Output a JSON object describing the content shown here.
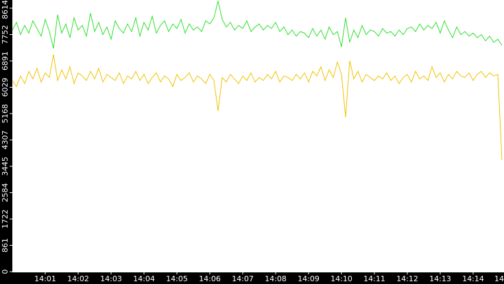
{
  "chart_data": {
    "type": "line",
    "x": [
      840,
      840.125,
      840.25,
      840.375,
      840.5,
      840.625,
      840.75,
      840.875,
      841,
      841.125,
      841.25,
      841.375,
      841.5,
      841.625,
      841.75,
      841.875,
      842,
      842.125,
      842.25,
      842.375,
      842.5,
      842.625,
      842.75,
      842.875,
      843,
      843.125,
      843.25,
      843.375,
      843.5,
      843.625,
      843.75,
      843.875,
      844,
      844.125,
      844.25,
      844.375,
      844.5,
      844.625,
      844.75,
      844.875,
      845,
      845.125,
      845.25,
      845.375,
      845.5,
      845.625,
      845.75,
      845.875,
      846,
      846.125,
      846.25,
      846.375,
      846.5,
      846.625,
      846.75,
      846.875,
      847,
      847.125,
      847.25,
      847.375,
      847.5,
      847.625,
      847.75,
      847.875,
      848,
      848.125,
      848.25,
      848.375,
      848.5,
      848.625,
      848.75,
      848.875,
      849,
      849.125,
      849.25,
      849.375,
      849.5,
      849.625,
      849.75,
      849.875,
      850,
      850.125,
      850.25,
      850.375,
      850.5,
      850.625,
      850.75,
      850.875,
      851,
      851.125,
      851.25,
      851.375,
      851.5,
      851.625,
      851.75,
      851.875,
      852,
      852.125,
      852.25,
      852.375,
      852.5,
      852.625,
      852.75,
      852.875,
      853,
      853.125,
      853.25,
      853.375,
      853.5,
      853.625,
      853.75,
      853.875,
      854,
      854.125,
      854.25,
      854.375,
      854.5,
      854.625,
      854.75,
      854.875
    ],
    "series": [
      {
        "color": "#2ee02e",
        "values": [
          7900,
          8150,
          7750,
          8050,
          7800,
          8200,
          7950,
          7700,
          8250,
          7850,
          7300,
          8400,
          7800,
          8100,
          7650,
          8300,
          7900,
          8050,
          7700,
          8450,
          7850,
          8150,
          7750,
          8000,
          7600,
          8200,
          7950,
          7800,
          8100,
          7850,
          8300,
          7700,
          8150,
          7900,
          8350,
          7800,
          8050,
          8200,
          7850,
          8100,
          7950,
          8250,
          7800,
          8100,
          7900,
          8000,
          7850,
          8200,
          8100,
          8300,
          8850,
          8250,
          8000,
          8150,
          7900,
          8050,
          7950,
          8200,
          7850,
          8000,
          8100,
          7900,
          8050,
          7950,
          8150,
          7850,
          8000,
          7750,
          7900,
          7700,
          7850,
          7800,
          7650,
          7950,
          7700,
          7900,
          7600,
          8000,
          7750,
          7850,
          7350,
          8300,
          7500,
          7900,
          7650,
          8050,
          7750,
          7900,
          7850,
          7700,
          7950,
          7800,
          7850,
          7700,
          7900,
          7750,
          7950,
          8000,
          7850,
          8100,
          7900,
          8050,
          7950,
          8150,
          7800,
          8200,
          7900,
          7650,
          8000,
          7750,
          7850,
          7700,
          7800,
          7650,
          7750,
          7550,
          7700,
          7500,
          7600,
          7400
        ]
      },
      {
        "color": "#f2c200",
        "values": [
          6250,
          6050,
          6400,
          6150,
          6550,
          6300,
          6650,
          6200,
          6500,
          6350,
          7100,
          6250,
          6600,
          6300,
          6700,
          6150,
          6500,
          6400,
          6250,
          6550,
          6300,
          6650,
          6200,
          6450,
          6350,
          6250,
          6500,
          6150,
          6400,
          6300,
          6550,
          6250,
          6450,
          6150,
          6350,
          6500,
          6200,
          6400,
          6300,
          6050,
          6450,
          6250,
          6350,
          6500,
          6200,
          6400,
          6300,
          6150,
          6450,
          6250,
          5250,
          6350,
          6200,
          6450,
          6300,
          6150,
          6400,
          6250,
          6500,
          6200,
          6350,
          6250,
          6450,
          6300,
          6550,
          6200,
          6400,
          6350,
          6250,
          6450,
          6300,
          6500,
          6200,
          6550,
          6400,
          6700,
          6250,
          6600,
          6350,
          6850,
          6450,
          5050,
          6900,
          6300,
          6550,
          6200,
          6450,
          6350,
          6250,
          6400,
          6300,
          6500,
          6250,
          6400,
          6150,
          6350,
          6450,
          6200,
          6550,
          6300,
          6400,
          6250,
          6700,
          6350,
          6500,
          6200,
          6450,
          6300,
          6550,
          6400,
          6350,
          6500,
          6250,
          6450,
          6550,
          6350,
          6500,
          6400,
          6450,
          3650
        ]
      }
    ],
    "xlim": [
      840,
      855
    ],
    "xticks": [
      {
        "value": 841,
        "label": "14:01"
      },
      {
        "value": 842,
        "label": "14:02"
      },
      {
        "value": 843,
        "label": "14:03"
      },
      {
        "value": 844,
        "label": "14:04"
      },
      {
        "value": 845,
        "label": "14:05"
      },
      {
        "value": 846,
        "label": "14:06"
      },
      {
        "value": 847,
        "label": "14:07"
      },
      {
        "value": 848,
        "label": "14:08"
      },
      {
        "value": 849,
        "label": "14:09"
      },
      {
        "value": 850,
        "label": "14:10"
      },
      {
        "value": 851,
        "label": "14:11"
      },
      {
        "value": 852,
        "label": "14:12"
      },
      {
        "value": 853,
        "label": "14:13"
      },
      {
        "value": 854,
        "label": "14:14"
      },
      {
        "value": 855,
        "label": "14"
      }
    ],
    "ylim": [
      0,
      8882
    ],
    "yticks": [
      0,
      861,
      1722,
      2584,
      3445,
      4307,
      5168,
      6029,
      6891,
      7752,
      8614
    ],
    "grid": false
  }
}
